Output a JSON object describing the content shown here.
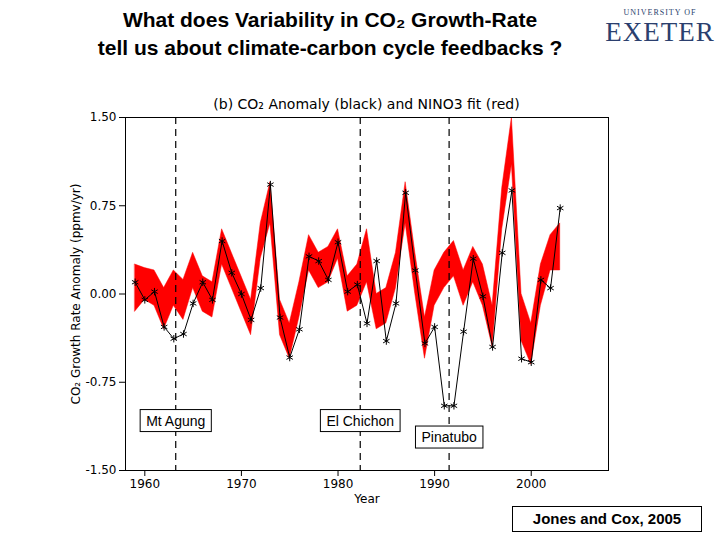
{
  "slide": {
    "heading": [
      "What does Variability in CO₂ Growth-Rate",
      "tell us about climate-carbon cycle feedbacks ?"
    ],
    "logo": [
      "UNIVERSITY OF",
      "EXETER"
    ],
    "citation": "Jones and Cox, 2005"
  },
  "chart_data": {
    "type": "line",
    "title": "(b) CO₂ Anomaly (black) and NINO3 fit (red)",
    "x_label": "Year",
    "y_label": "CO₂ Growth Rate Anomaly (ppmv/yr)",
    "x": [
      1959,
      1960,
      1961,
      1962,
      1963,
      1964,
      1965,
      1966,
      1967,
      1968,
      1969,
      1970,
      1971,
      1972,
      1973,
      1974,
      1975,
      1976,
      1977,
      1978,
      1979,
      1980,
      1981,
      1982,
      1983,
      1984,
      1985,
      1986,
      1987,
      1988,
      1989,
      1990,
      1991,
      1992,
      1993,
      1994,
      1995,
      1996,
      1997,
      1998,
      1999,
      2000,
      2001,
      2002,
      2003
    ],
    "series": [
      {
        "name": "NINO3 fit",
        "type": "area",
        "color": "#ff0000",
        "lower": [
          -0.15,
          -0.05,
          -0.1,
          -0.3,
          -0.1,
          -0.22,
          0.05,
          -0.15,
          -0.2,
          0.25,
          0.05,
          -0.15,
          -0.35,
          0.3,
          0.6,
          -0.35,
          -0.55,
          -0.2,
          0.2,
          0.05,
          0.1,
          0.3,
          -0.15,
          -0.1,
          0.1,
          -0.3,
          -0.25,
          0.05,
          0.6,
          0.0,
          -0.55,
          -0.1,
          0.05,
          0.15,
          -0.1,
          0.1,
          -0.1,
          -0.45,
          0.55,
          1.1,
          -0.4,
          -0.6,
          -0.1,
          0.2,
          0.2
        ],
        "upper": [
          0.25,
          0.22,
          0.2,
          0.05,
          0.2,
          0.12,
          0.35,
          0.15,
          0.1,
          0.55,
          0.35,
          0.15,
          -0.05,
          0.6,
          0.95,
          -0.05,
          -0.25,
          0.1,
          0.5,
          0.35,
          0.4,
          0.55,
          0.15,
          0.25,
          0.55,
          0.0,
          0.05,
          0.35,
          0.95,
          0.35,
          -0.2,
          0.2,
          0.35,
          0.45,
          0.2,
          0.4,
          0.25,
          -0.1,
          0.9,
          1.5,
          0.0,
          -0.25,
          0.25,
          0.5,
          0.6
        ]
      },
      {
        "name": "CO₂ Anomaly",
        "type": "line",
        "color": "#000000",
        "marker": "asterisk",
        "line_style": "solid",
        "values": [
          0.1,
          -0.05,
          0.02,
          -0.28,
          -0.38,
          -0.34,
          -0.08,
          0.1,
          -0.05,
          0.45,
          0.18,
          0.0,
          -0.22,
          0.05,
          0.93,
          -0.2,
          -0.54,
          -0.3,
          0.32,
          0.28,
          0.12,
          0.44,
          0.02,
          0.08,
          -0.25,
          0.28,
          -0.4,
          -0.08,
          0.86,
          0.2,
          -0.42,
          -0.28,
          -0.95,
          -0.95,
          -0.32,
          0.3,
          -0.02,
          -0.45,
          0.35,
          0.88,
          -0.55,
          -0.58,
          0.12,
          0.05,
          0.73
        ]
      }
    ],
    "annotations": [
      {
        "text": "Mt Agung",
        "x": 1963.2,
        "y": -1.08
      },
      {
        "text": "El Chichon",
        "x": 1982.3,
        "y": -1.08
      },
      {
        "text": "Pinatubo",
        "x": 1991.5,
        "y": -1.22
      }
    ],
    "xlim": [
      1958,
      2008
    ],
    "xticks": [
      1960,
      1970,
      1980,
      1990,
      2000
    ],
    "ylim": [
      -1.5,
      1.5
    ],
    "yticks": [
      {
        "value": -1.5,
        "label": "-1.50"
      },
      {
        "value": -0.75,
        "label": "-0.75"
      },
      {
        "value": 0,
        "label": "0.00"
      },
      {
        "value": 0.75,
        "label": "0.75"
      },
      {
        "value": 1.5,
        "label": "1.50"
      }
    ],
    "grid": false
  }
}
